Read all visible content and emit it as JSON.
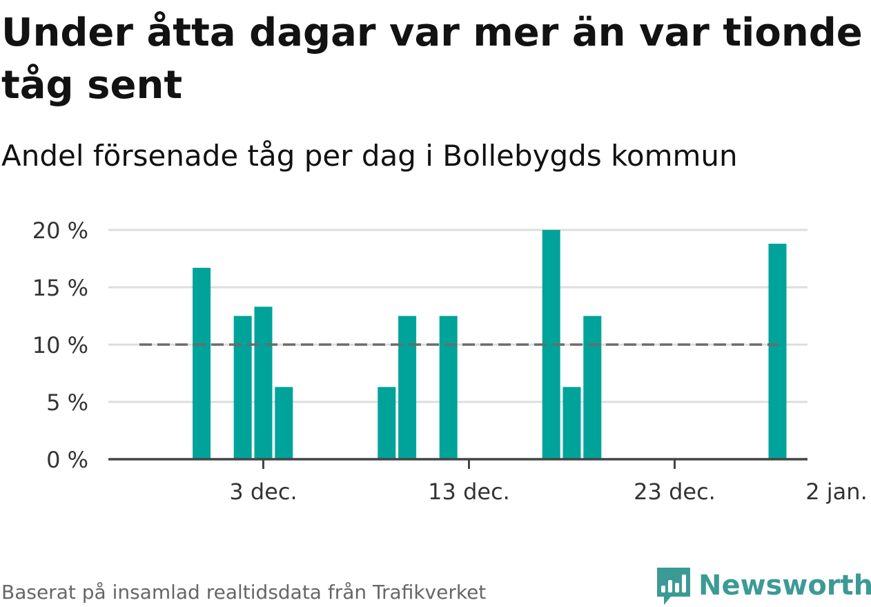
{
  "title": "Under åtta dagar var mer än var tionde tåg sent",
  "subtitle": "Andel försenade tåg per dag i Bollebygds kommun",
  "source": "Baserat på insamlad realtidsdata från Trafikverket",
  "brand": {
    "name": "Newsworthy",
    "color": "#3c9a96",
    "icon": "newsworthy-chart-icon"
  },
  "colors": {
    "bar": "#00a39a",
    "reference_line": "#6b6b6b",
    "grid": "#dddddd",
    "axis": "#444444"
  },
  "chart_data": {
    "type": "bar",
    "x_axis": {
      "type": "date",
      "ticks": [
        "3 dec.",
        "13 dec.",
        "23 dec.",
        "2 jan."
      ]
    },
    "y_axis": {
      "ticks": [
        "0 %",
        "5 %",
        "10 %",
        "15 %",
        "20 %"
      ],
      "ylim": [
        0,
        20
      ],
      "unit": "%"
    },
    "grid": true,
    "reference_line": {
      "value": 10,
      "style": "dashed"
    },
    "series": [
      {
        "values": [
          {
            "date": "2023-11-30",
            "value": 16.7
          },
          {
            "date": "2023-12-02",
            "value": 12.5
          },
          {
            "date": "2023-12-03",
            "value": 13.3
          },
          {
            "date": "2023-12-04",
            "value": 6.3
          },
          {
            "date": "2023-12-09",
            "value": 6.3
          },
          {
            "date": "2023-12-10",
            "value": 12.5
          },
          {
            "date": "2023-12-12",
            "value": 12.5
          },
          {
            "date": "2023-12-17",
            "value": 20.0
          },
          {
            "date": "2023-12-18",
            "value": 6.3
          },
          {
            "date": "2023-12-19",
            "value": 12.5
          },
          {
            "date": "2023-12-28",
            "value": 18.8
          }
        ]
      }
    ]
  }
}
